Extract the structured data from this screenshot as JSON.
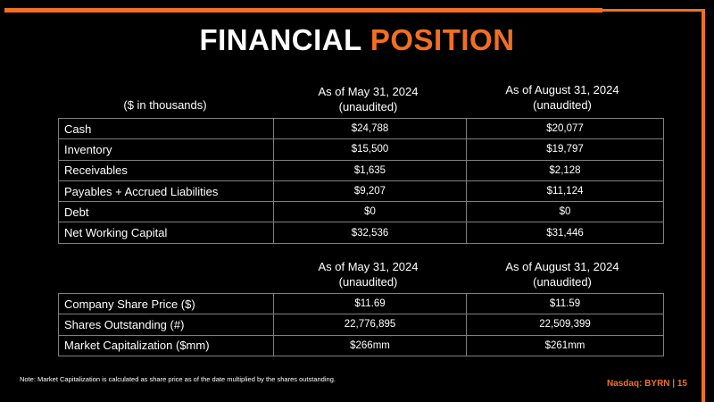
{
  "title": {
    "part1": "FINANCIAL",
    "part2": "POSITION"
  },
  "accent_color": "#f26f21",
  "table1": {
    "unit_label": "($ in thousands)",
    "col1": {
      "line1": "As of May 31, 2024",
      "line2": "(unaudited)"
    },
    "col2": {
      "line1": "As of August 31, 2024",
      "line2": "(unaudited)"
    },
    "rows": [
      {
        "label": "Cash",
        "may": "$24,788",
        "aug": "$20,077"
      },
      {
        "label": "Inventory",
        "may": "$15,500",
        "aug": "$19,797"
      },
      {
        "label": "Receivables",
        "may": "$1,635",
        "aug": "$2,128"
      },
      {
        "label": "Payables + Accrued Liabilities",
        "may": "$9,207",
        "aug": "$11,124"
      },
      {
        "label": "Debt",
        "may": "$0",
        "aug": "$0"
      },
      {
        "label": "Net Working Capital",
        "may": "$32,536",
        "aug": "$31,446"
      }
    ]
  },
  "table2": {
    "col1": {
      "line1": "As of May 31, 2024",
      "line2": "(unaudited)"
    },
    "col2": {
      "line1": "As of August 31, 2024",
      "line2": "(unaudited)"
    },
    "rows": [
      {
        "label": "Company Share Price ($)",
        "may": "$11.69",
        "aug": "$11.59"
      },
      {
        "label": "Shares Outstanding (#)",
        "may": "22,776,895",
        "aug": "22,509,399"
      },
      {
        "label": "Market Capitalization ($mm)",
        "may": "$266mm",
        "aug": "$261mm"
      }
    ]
  },
  "note": "Note: Market Capitalization is calculated as share price as of the date multiplied by the shares outstanding.",
  "footer": "Nasdaq: BYRN | 15"
}
